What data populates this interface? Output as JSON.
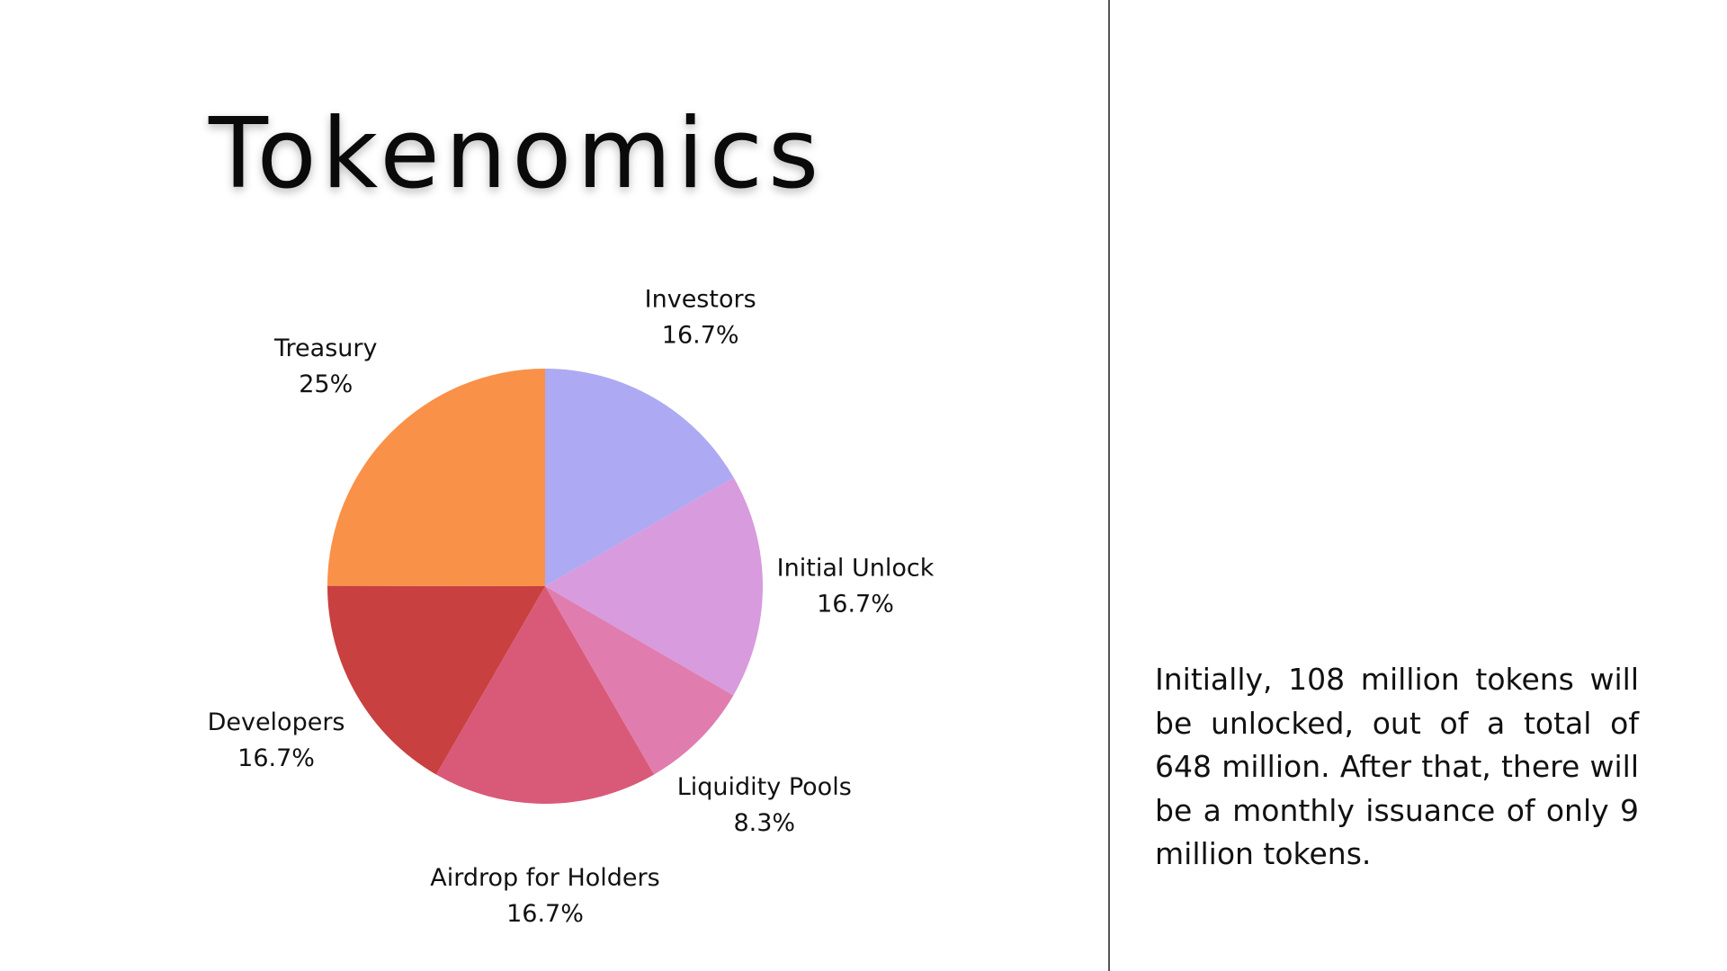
{
  "title": "Tokenomics",
  "description": "Initially, 108 million tokens will be unlocked, out of a total of 648 million. After that, there will be a monthly issuance of only 9 million tokens.",
  "chart_data": {
    "type": "pie",
    "title": "",
    "legend": "none",
    "slices": [
      {
        "name": "Investors",
        "label": "16.7%",
        "value": 16.7,
        "color": "#ADA9F2"
      },
      {
        "name": "Initial Unlock",
        "label": "16.7%",
        "value": 16.7,
        "color": "#D89BDE"
      },
      {
        "name": "Liquidity Pools",
        "label": "8.3%",
        "value": 8.3,
        "color": "#E07DAE"
      },
      {
        "name": "Airdrop for Holders",
        "label": "16.7%",
        "value": 16.7,
        "color": "#D95A78"
      },
      {
        "name": "Developers",
        "label": "16.7%",
        "value": 16.7,
        "color": "#C94040"
      },
      {
        "name": "Treasury",
        "label": "25%",
        "value": 25,
        "color": "#FA9149"
      }
    ]
  }
}
